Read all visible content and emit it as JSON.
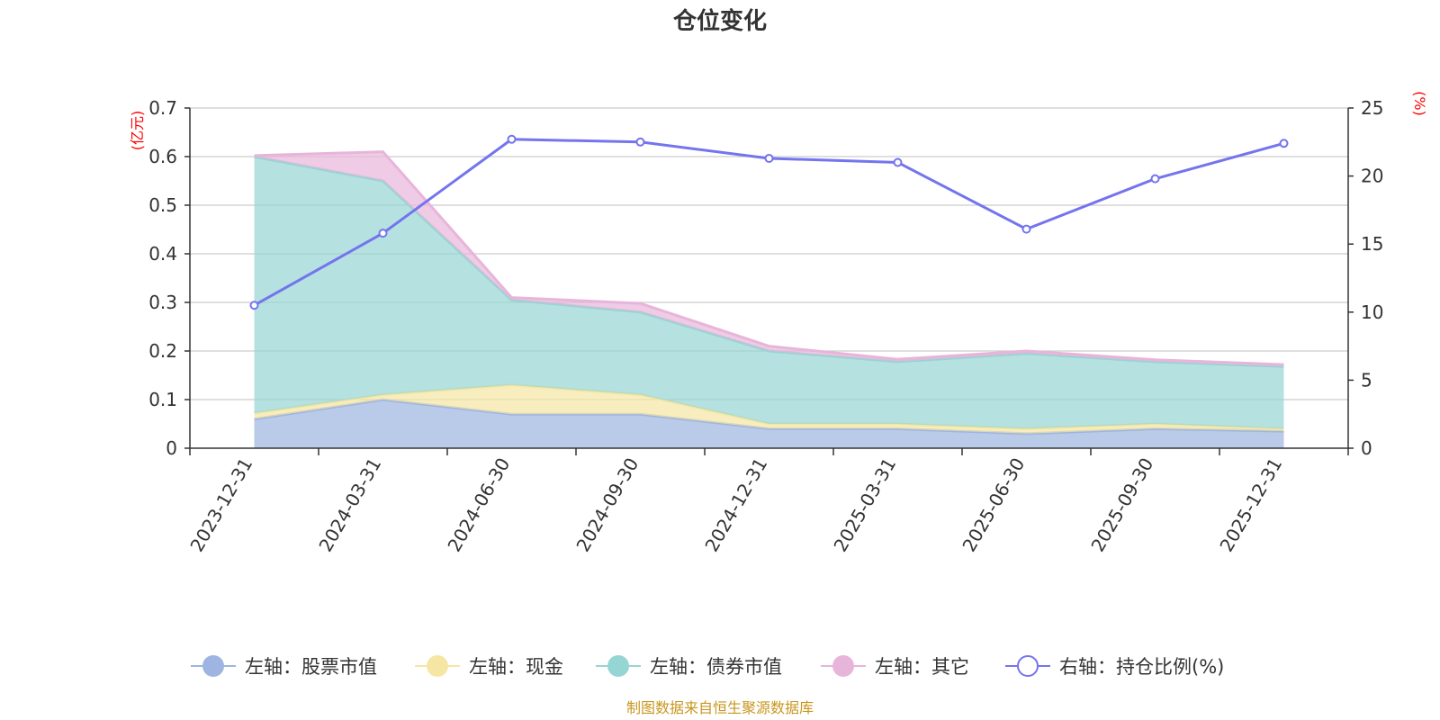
{
  "chart_data": {
    "type": "area",
    "title": "仓位变化",
    "left_axis_unit": "(亿元)",
    "right_axis_unit": "(%)",
    "categories": [
      "2023-12-31",
      "2024-03-31",
      "2024-06-30",
      "2024-09-30",
      "2024-12-31",
      "2025-03-31",
      "2025-06-30",
      "2025-09-30",
      "2025-12-31"
    ],
    "left_ylim": [
      0,
      0.7
    ],
    "left_ticks": [
      "0",
      "0.1",
      "0.2",
      "0.3",
      "0.4",
      "0.5",
      "0.6",
      "0.7"
    ],
    "right_ylim": [
      0,
      25
    ],
    "right_ticks": [
      "0",
      "5",
      "10",
      "15",
      "20",
      "25"
    ],
    "stacked_series": [
      {
        "name": "左轴：股票市值",
        "color": "#9db5e0",
        "values": [
          0.06,
          0.1,
          0.07,
          0.07,
          0.04,
          0.04,
          0.03,
          0.04,
          0.035
        ]
      },
      {
        "name": "左轴：现金",
        "color": "#f5e6a3",
        "values": [
          0.012,
          0.01,
          0.06,
          0.04,
          0.01,
          0.01,
          0.01,
          0.01,
          0.005
        ]
      },
      {
        "name": "左轴：债券市值",
        "color": "#95d5d3",
        "values": [
          0.528,
          0.44,
          0.175,
          0.17,
          0.15,
          0.128,
          0.155,
          0.128,
          0.128
        ]
      },
      {
        "name": "左轴：其它",
        "color": "#e8b5da",
        "values": [
          0.002,
          0.06,
          0.005,
          0.018,
          0.01,
          0.005,
          0.005,
          0.004,
          0.004
        ]
      }
    ],
    "line_series": {
      "name": "右轴：持仓比例(%)",
      "color": "#7474ee",
      "values": [
        10.5,
        15.8,
        22.7,
        22.5,
        21.3,
        21.0,
        16.1,
        19.8,
        22.4
      ]
    },
    "source": "制图数据来自恒生聚源数据库"
  }
}
